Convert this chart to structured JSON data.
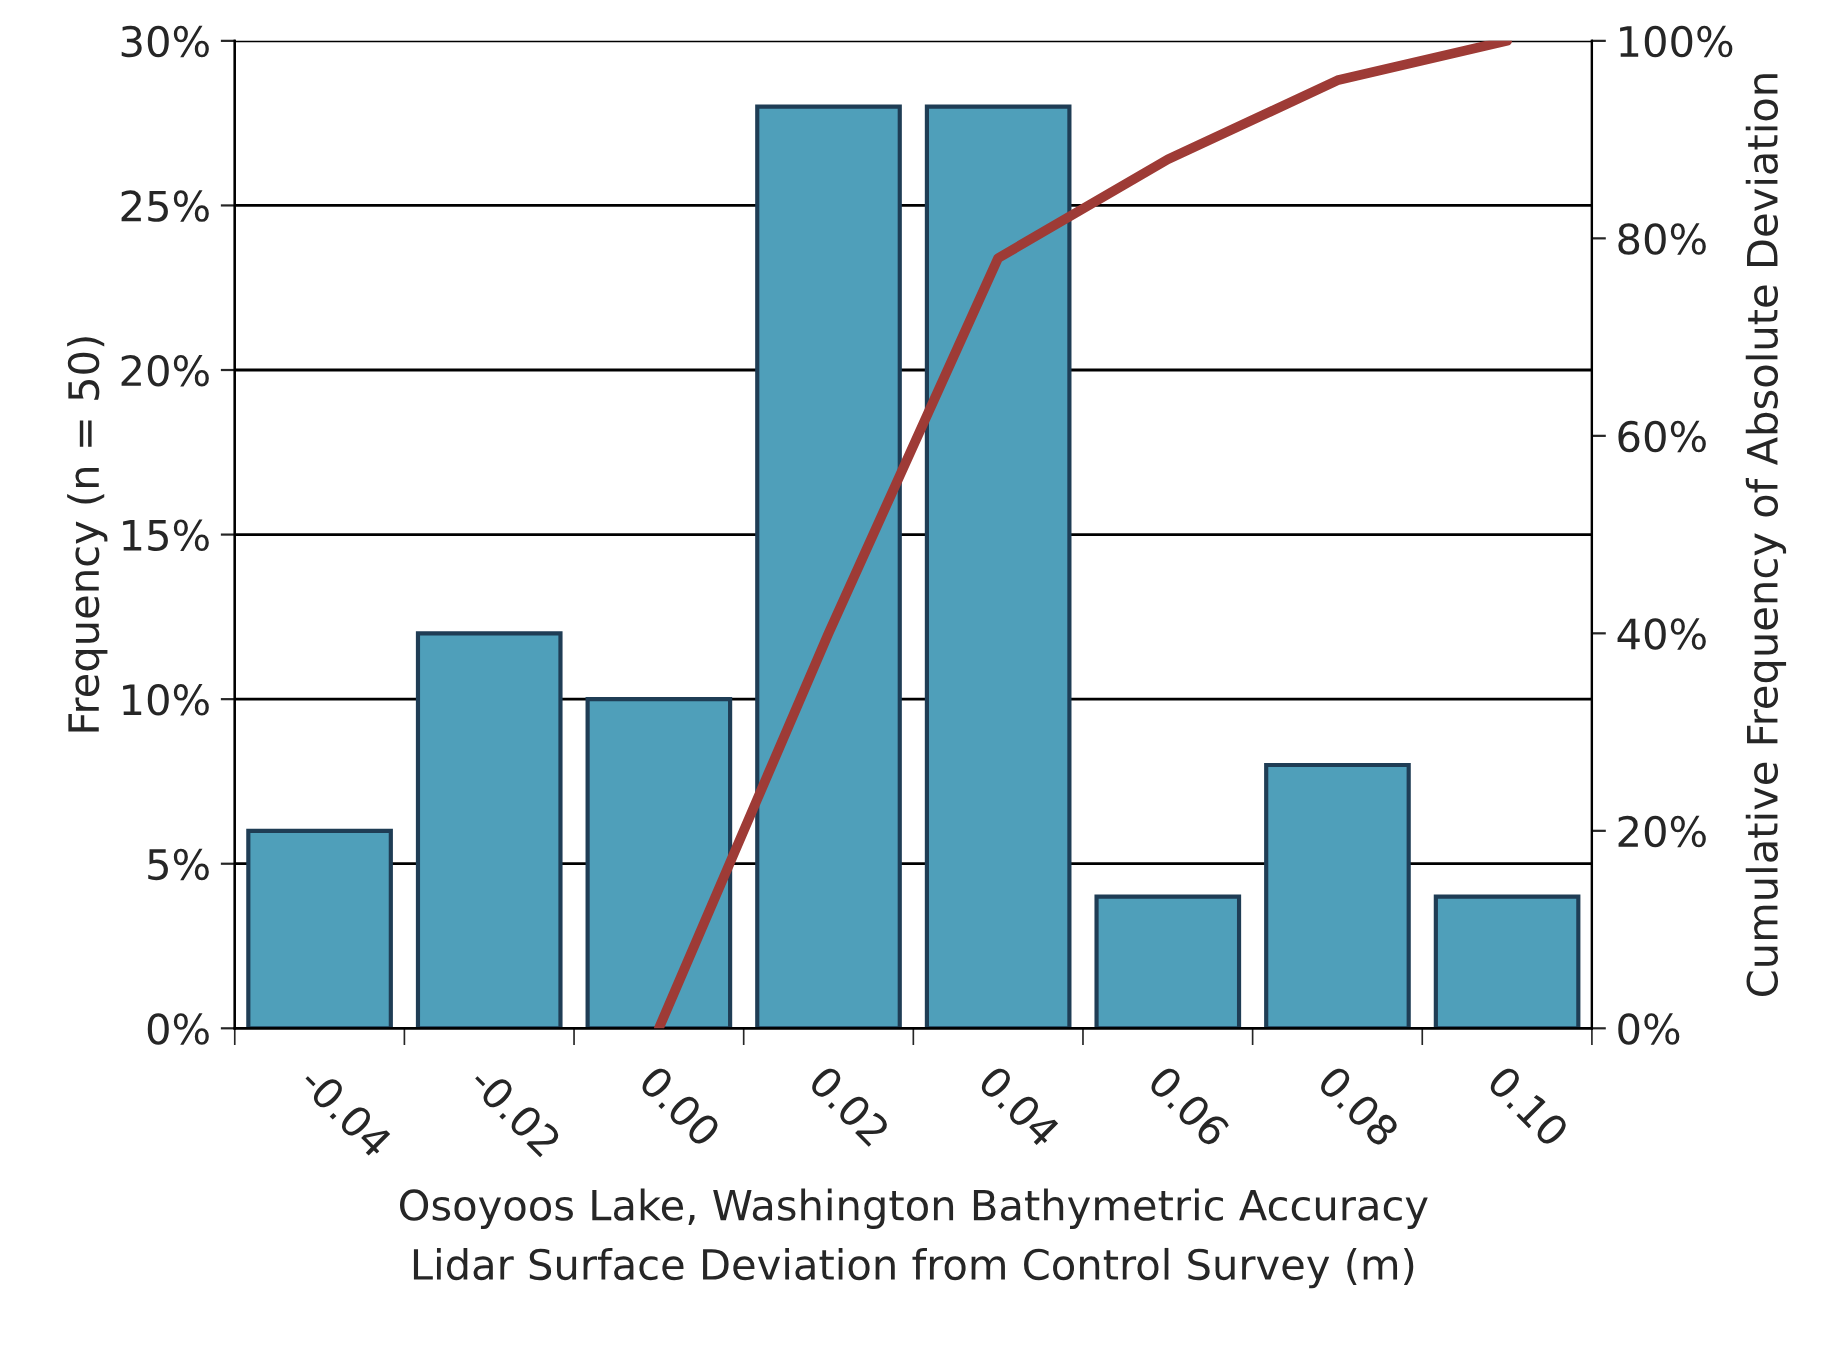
{
  "chart_data": {
    "type": "bar",
    "xlabel": "Osoyoos Lake, Washington Bathymetric Accuracy\nLidar Surface Deviation from Control Survey (m)",
    "ylabel": "Frequency (n = 50)",
    "y2label": "Cumulative Frequency of Absolute Deviation",
    "categories": [
      "-0.04",
      "-0.02",
      "0.00",
      "0.02",
      "0.04",
      "0.06",
      "0.08",
      "0.10"
    ],
    "series": [
      {
        "color": "#4f9fba",
        "values": [
          6,
          12,
          10,
          28,
          28,
          4,
          8,
          4
        ]
      },
      {
        "type": "line",
        "axis": "y2",
        "color": "#9e3b36",
        "values": [
          null,
          null,
          0,
          40,
          78,
          88,
          96,
          100
        ]
      }
    ],
    "ylim": [
      0,
      30
    ],
    "yticks": [
      {
        "value": 0,
        "label": "0%"
      },
      {
        "value": 5,
        "label": "5%"
      },
      {
        "value": 10,
        "label": "10%"
      },
      {
        "value": 15,
        "label": "15%"
      },
      {
        "value": 20,
        "label": "20%"
      },
      {
        "value": 25,
        "label": "25%"
      },
      {
        "value": 30,
        "label": "30%"
      }
    ],
    "y2lim": [
      0,
      100
    ],
    "y2ticks": [
      {
        "value": 0,
        "label": "0%"
      },
      {
        "value": 20,
        "label": "20%"
      },
      {
        "value": 40,
        "label": "40%"
      },
      {
        "value": 60,
        "label": "60%"
      },
      {
        "value": 80,
        "label": "80%"
      },
      {
        "value": 100,
        "label": "100%"
      }
    ],
    "grid": "y",
    "legend": false,
    "marker": "none",
    "line_style": "solid"
  }
}
